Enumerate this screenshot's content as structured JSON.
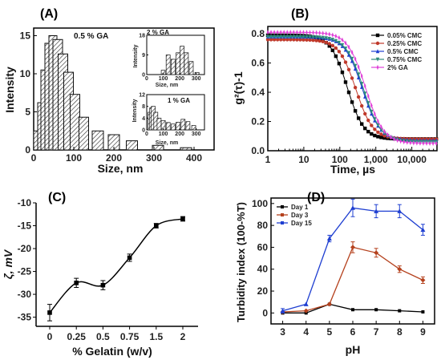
{
  "chart_data": [
    {
      "panel": "(A)",
      "type": "bar",
      "ylabel": "Intensity",
      "xlabel": "Size, nm",
      "xlim": [
        0,
        450
      ],
      "ylim": [
        0,
        16
      ],
      "xticks": [
        0,
        100,
        200,
        300,
        400
      ],
      "yticks": [
        0,
        5,
        10,
        15
      ],
      "annotation": "0.5 % GA",
      "bars": [
        {
          "x": 10,
          "v": 2.5
        },
        {
          "x": 20,
          "v": 6.2
        },
        {
          "x": 28,
          "v": 10.5
        },
        {
          "x": 38,
          "v": 14.0
        },
        {
          "x": 48,
          "v": 15.0
        },
        {
          "x": 60,
          "v": 14.5
        },
        {
          "x": 73,
          "v": 12.6
        },
        {
          "x": 87,
          "v": 10.2
        },
        {
          "x": 103,
          "v": 7.3
        },
        {
          "x": 125,
          "v": 4.3
        },
        {
          "x": 160,
          "v": 2.5
        },
        {
          "x": 200,
          "v": 2.0
        },
        {
          "x": 245,
          "v": 1.2
        },
        {
          "x": 310,
          "v": 0.6
        },
        {
          "x": 380,
          "v": 0.3
        }
      ],
      "insets": [
        {
          "annotation": "2 % GA",
          "ylabel": "Intensity",
          "xlabel": "Size, nm",
          "xlim": [
            0,
            350
          ],
          "ylim": [
            0,
            18
          ],
          "xticks": [
            0,
            100,
            200,
            300
          ],
          "yticks": [
            0,
            9,
            18
          ],
          "bars": [
            {
              "x": 100,
              "v": 2
            },
            {
              "x": 130,
              "v": 9
            },
            {
              "x": 160,
              "v": 7
            },
            {
              "x": 190,
              "v": 10
            },
            {
              "x": 215,
              "v": 13
            },
            {
              "x": 240,
              "v": 10
            },
            {
              "x": 270,
              "v": 6
            },
            {
              "x": 305,
              "v": 1
            }
          ]
        },
        {
          "annotation": "1 % GA",
          "ylabel": "Intensity",
          "xlabel": "Size, nm",
          "xlim": [
            0,
            350
          ],
          "ylim": [
            0,
            12
          ],
          "xticks": [
            0,
            100,
            200,
            300
          ],
          "yticks": [
            0,
            4,
            8,
            12
          ],
          "bars": [
            {
              "x": 20,
              "v": 6
            },
            {
              "x": 30,
              "v": 7.5
            },
            {
              "x": 40,
              "v": 8
            },
            {
              "x": 55,
              "v": 6
            },
            {
              "x": 75,
              "v": 4
            },
            {
              "x": 100,
              "v": 3.2
            },
            {
              "x": 130,
              "v": 2.5
            },
            {
              "x": 160,
              "v": 2
            },
            {
              "x": 190,
              "v": 2.6
            },
            {
              "x": 220,
              "v": 3.6
            },
            {
              "x": 250,
              "v": 2.8
            },
            {
              "x": 285,
              "v": 1.5
            }
          ]
        }
      ]
    },
    {
      "panel": "(B)",
      "type": "line",
      "xscale": "log",
      "xlabel": "Time, µs",
      "ylabel": "g²(τ)-1",
      "xlim": [
        1,
        50000
      ],
      "ylim": [
        0,
        0.85
      ],
      "xticks": [
        1,
        10,
        100,
        1000,
        10000
      ],
      "xtick_labels": [
        "1",
        "10",
        "100",
        "1,000",
        "10,000"
      ],
      "yticks": [
        0.0,
        0.2,
        0.4,
        0.6,
        0.8
      ],
      "ytick_labels": [
        "0.0",
        "0.2",
        "0.4",
        "0.6",
        "0.8"
      ],
      "legend_position": "top-right",
      "series": [
        {
          "name": "0.05% CMC",
          "color": "#000000",
          "marker": "square",
          "plateau": 0.79,
          "t50": 160,
          "slope": 1.9,
          "tail": 0.08
        },
        {
          "name": "0.25% CMC",
          "color": "#c0392b",
          "marker": "circle",
          "plateau": 0.76,
          "t50": 280,
          "slope": 1.85,
          "tail": 0.08
        },
        {
          "name": "0.5%  CMC",
          "color": "#1f3fd1",
          "marker": "triangle",
          "plateau": 0.78,
          "t50": 420,
          "slope": 1.8,
          "tail": 0.07
        },
        {
          "name": "0.75% CMC",
          "color": "#2e8b7a",
          "marker": "triangle-down",
          "plateau": 0.78,
          "t50": 460,
          "slope": 1.8,
          "tail": 0.06
        },
        {
          "name": "2% GA",
          "color": "#e040d8",
          "marker": "star",
          "plateau": 0.81,
          "t50": 520,
          "slope": 1.75,
          "tail": 0.05
        }
      ]
    },
    {
      "panel": "(C)",
      "type": "scatter",
      "xlabel": "% Gelatin (w/v)",
      "ylabel": "ζ, mV",
      "ylim": [
        -37,
        -10
      ],
      "yticks": [
        -35,
        -30,
        -25,
        -20,
        -15,
        -10
      ],
      "categories": [
        "0",
        "0.25",
        "0.5",
        "0.75",
        "1.5",
        "2"
      ],
      "values": [
        -34.0,
        -27.5,
        -28.0,
        -22.0,
        -15.0,
        -13.5
      ],
      "errors": [
        1.8,
        1.0,
        1.0,
        0.8,
        0.5,
        0.5
      ]
    },
    {
      "panel": "(D)",
      "type": "line",
      "xlabel": "pH",
      "ylabel": "Turbidity index (100-%T)",
      "xlim": [
        2.5,
        9.5
      ],
      "ylim": [
        -10,
        105
      ],
      "xticks": [
        3,
        4,
        5,
        6,
        7,
        8,
        9
      ],
      "yticks": [
        0,
        20,
        40,
        60,
        80,
        100
      ],
      "legend_position": "top-left",
      "x": [
        3,
        4,
        5,
        6,
        7,
        8,
        9
      ],
      "series": [
        {
          "name": "Day 1",
          "color": "#000000",
          "values": [
            0,
            0,
            8,
            3,
            3,
            2,
            1
          ],
          "errors": [
            1,
            1,
            1,
            1,
            1,
            1,
            1
          ]
        },
        {
          "name": "Day 3",
          "color": "#b5421e",
          "values": [
            1,
            2,
            8,
            60,
            55,
            40,
            30
          ],
          "errors": [
            1,
            1,
            1,
            5,
            4,
            3,
            3
          ]
        },
        {
          "name": "Day 15",
          "color": "#1f3fd1",
          "values": [
            2,
            8,
            68,
            96,
            93,
            93,
            76
          ],
          "errors": [
            2,
            1,
            3,
            8,
            6,
            6,
            5
          ]
        }
      ]
    }
  ]
}
